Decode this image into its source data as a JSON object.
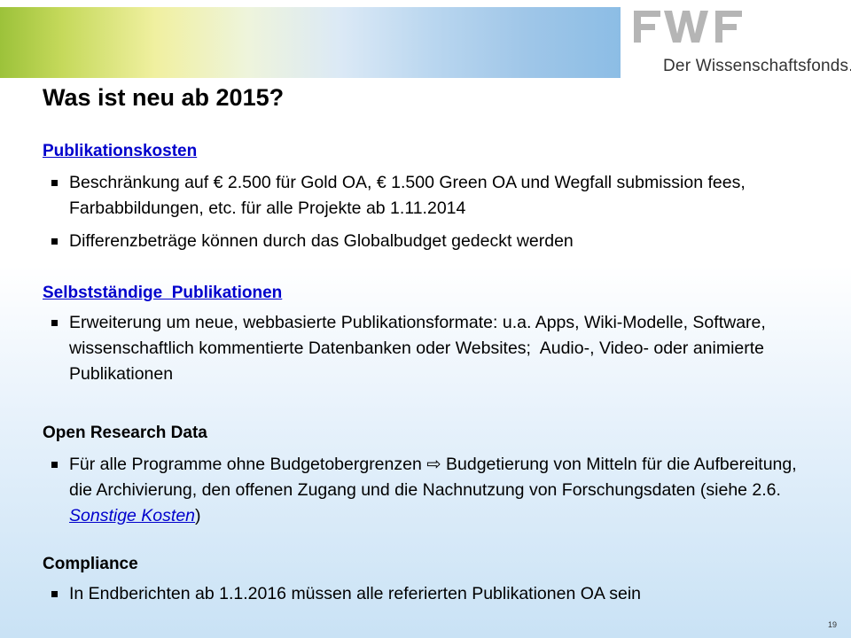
{
  "header": {
    "logo_text": "FWF",
    "tagline": "Der Wissenschaftsfonds."
  },
  "title": "Was ist neu ab 2015?",
  "sections": [
    {
      "heading": "Publikationskosten",
      "bullets": [
        "Beschränkung auf € 2.500 für Gold OA, € 1.500 Green OA und Wegfall submission fees, Farbabbildungen, etc. für alle Projekte ab 1.11.2014",
        "Differenzbeträge können durch das Globalbudget gedeckt werden"
      ]
    },
    {
      "heading": "Selbstständige  Publikationen",
      "bullets": [
        "Erweiterung um neue, webbasierte Publikationsformate: u.a. Apps, Wiki-Modelle, Software, wissenschaftlich kommentierte Datenbanken oder Websites;  Audio-, Video- oder animierte Publikationen"
      ]
    },
    {
      "heading": "Open Research Data",
      "bullets_parts": {
        "before": "Für alle Programme ohne Budgetobergrenzen ⇨ Budgetierung von Mitteln für die Aufbereitung, die Archivierung, den offenen Zugang und die Nachnutzung von Forschungsdaten (siehe 2.6. ",
        "link": "Sonstige Kosten",
        "after": ")"
      }
    },
    {
      "heading": "Compliance",
      "bullets": [
        "In Endberichten ab 1.1.2016 müssen alle referierten Publikationen OA sein"
      ]
    }
  ],
  "page_number": "19"
}
